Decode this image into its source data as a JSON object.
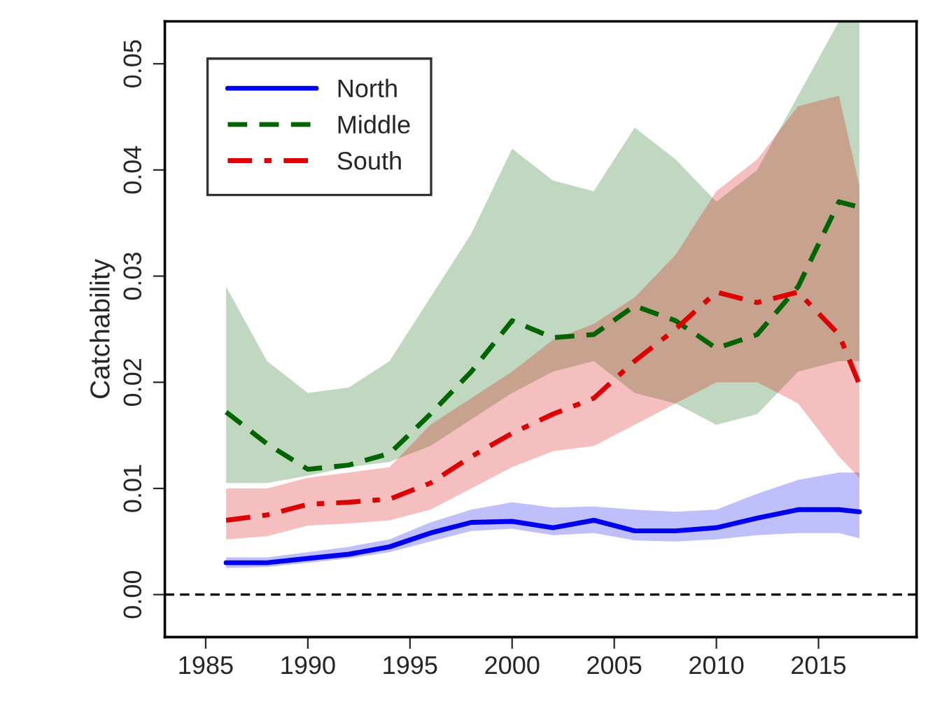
{
  "chart_data": {
    "type": "line",
    "ylabel": "Catchability",
    "x": [
      1986,
      1988,
      1990,
      1992,
      1994,
      1996,
      1998,
      2000,
      2002,
      2004,
      2006,
      2008,
      2010,
      2012,
      2014,
      2016,
      2017
    ],
    "series": [
      {
        "name": "North",
        "color": "#0000ee",
        "line_style": "solid",
        "values": [
          0.003,
          0.003,
          0.0034,
          0.0038,
          0.0045,
          0.0058,
          0.0068,
          0.0069,
          0.0063,
          0.007,
          0.006,
          0.006,
          0.0063,
          0.0072,
          0.008,
          0.008,
          0.0078
        ],
        "lower": [
          0.0025,
          0.0026,
          0.003,
          0.0034,
          0.004,
          0.005,
          0.006,
          0.0062,
          0.0056,
          0.0058,
          0.0051,
          0.005,
          0.0052,
          0.0056,
          0.0058,
          0.0058,
          0.0053
        ],
        "upper": [
          0.0035,
          0.0035,
          0.004,
          0.0045,
          0.0052,
          0.0068,
          0.008,
          0.0087,
          0.0082,
          0.0083,
          0.008,
          0.0078,
          0.008,
          0.0095,
          0.0108,
          0.0115,
          0.0115
        ]
      },
      {
        "name": "Middle",
        "color": "#006400",
        "line_style": "dashed",
        "values": [
          0.0172,
          0.0142,
          0.0118,
          0.0122,
          0.0133,
          0.017,
          0.021,
          0.0258,
          0.0242,
          0.0245,
          0.0272,
          0.0258,
          0.0232,
          0.0245,
          0.029,
          0.037,
          0.0365
        ],
        "lower": [
          0.0105,
          0.0105,
          0.0112,
          0.012,
          0.0125,
          0.014,
          0.0165,
          0.019,
          0.021,
          0.022,
          0.019,
          0.018,
          0.016,
          0.017,
          0.021,
          0.022,
          0.022
        ],
        "upper": [
          0.029,
          0.022,
          0.019,
          0.0195,
          0.022,
          0.028,
          0.034,
          0.042,
          0.039,
          0.038,
          0.044,
          0.041,
          0.037,
          0.04,
          0.047,
          0.054,
          0.054
        ]
      },
      {
        "name": "South",
        "color": "#dd0000",
        "line_style": "dotted",
        "values": [
          0.007,
          0.0075,
          0.0085,
          0.0087,
          0.009,
          0.0105,
          0.013,
          0.0152,
          0.017,
          0.0185,
          0.022,
          0.025,
          0.0285,
          0.0275,
          0.0285,
          0.0245,
          0.0198
        ],
        "lower": [
          0.0052,
          0.0055,
          0.0065,
          0.0067,
          0.007,
          0.008,
          0.01,
          0.012,
          0.0135,
          0.014,
          0.016,
          0.018,
          0.02,
          0.02,
          0.018,
          0.013,
          0.011
        ],
        "upper": [
          0.01,
          0.01,
          0.011,
          0.0115,
          0.012,
          0.016,
          0.0185,
          0.021,
          0.024,
          0.0255,
          0.028,
          0.032,
          0.038,
          0.041,
          0.046,
          0.047,
          0.0385
        ]
      }
    ],
    "xlim": [
      1983,
      2019.8
    ],
    "xticks": [
      1985,
      1990,
      1995,
      2000,
      2005,
      2010,
      2015
    ],
    "ylim": [
      -0.004,
      0.054
    ],
    "yticks": [
      {
        "value": 0,
        "label": "0.00"
      },
      {
        "value": 0.01,
        "label": "0.01"
      },
      {
        "value": 0.02,
        "label": "0.02"
      },
      {
        "value": 0.03,
        "label": "0.03"
      },
      {
        "value": 0.04,
        "label": "0.04"
      },
      {
        "value": 0.05,
        "label": "0.05"
      }
    ],
    "ref_lines": [
      {
        "axis": "y",
        "value": 0,
        "color": "#000000",
        "line_style": "dashed"
      }
    ],
    "grid": false,
    "legend": "top left"
  }
}
